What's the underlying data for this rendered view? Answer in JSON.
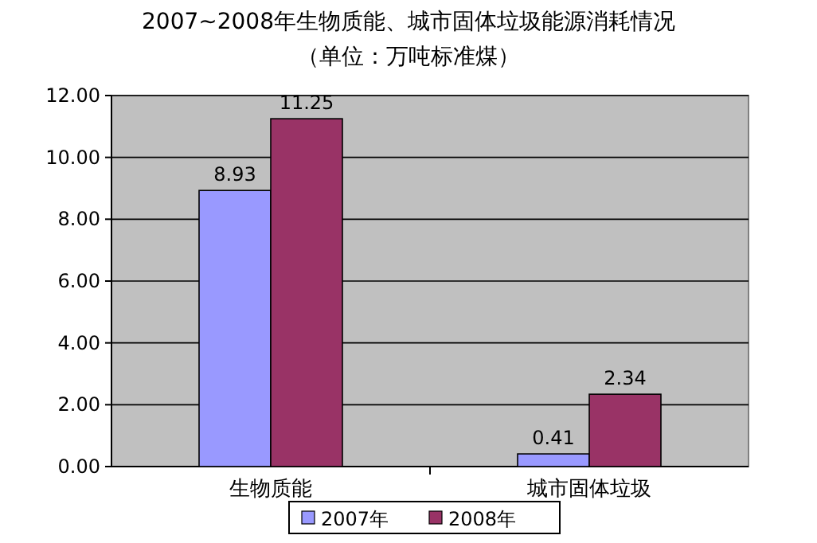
{
  "chart_data": {
    "type": "bar",
    "title": "2007~2008年生物质能、城市固体垃圾能源消耗情况",
    "subtitle": "（单位：万吨标准煤）",
    "categories": [
      "生物质能",
      "城市固体垃圾"
    ],
    "series": [
      {
        "name": "2007年",
        "color": "#9999ff",
        "values": [
          8.93,
          0.41
        ]
      },
      {
        "name": "2008年",
        "color": "#993366",
        "values": [
          11.25,
          2.34
        ]
      }
    ],
    "ylim": [
      0,
      12
    ],
    "yticks": [
      {
        "value": 0,
        "label": "0.00"
      },
      {
        "value": 2,
        "label": "2.00"
      },
      {
        "value": 4,
        "label": "4.00"
      },
      {
        "value": 6,
        "label": "6.00"
      },
      {
        "value": 8,
        "label": "8.00"
      },
      {
        "value": 10,
        "label": "10.00"
      },
      {
        "value": 12,
        "label": "12.00"
      }
    ],
    "grid": "y",
    "legend": "bottom",
    "data_labels": true
  }
}
